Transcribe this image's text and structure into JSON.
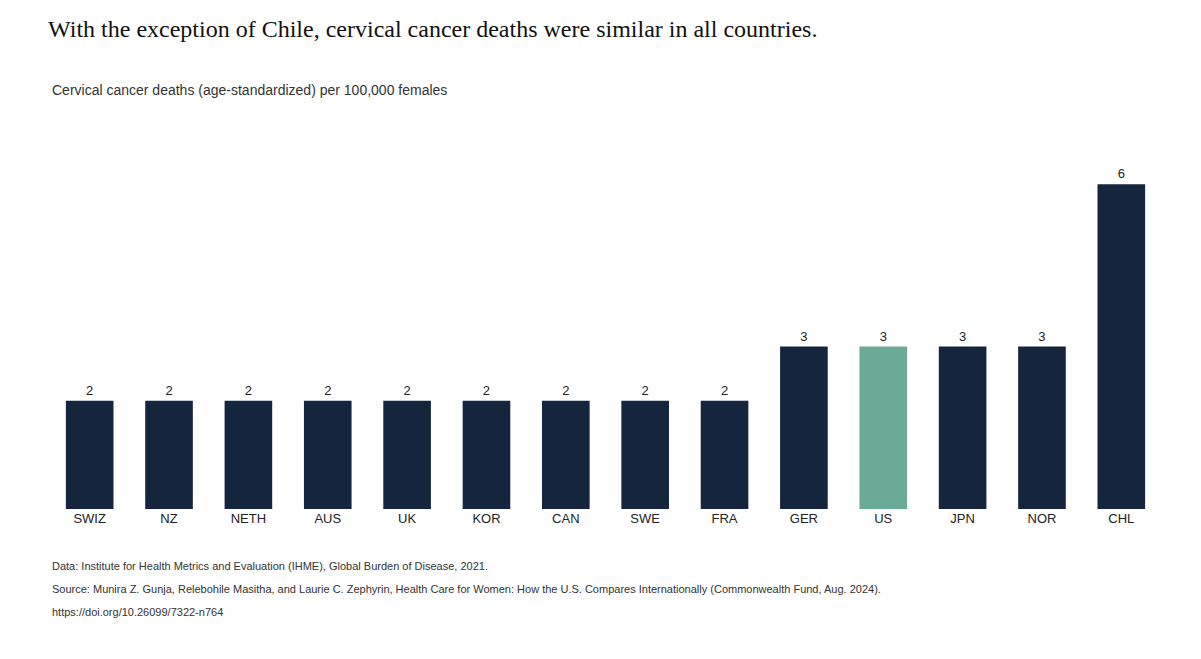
{
  "chart_data": {
    "type": "bar",
    "title": "With the exception of Chile, cervical cancer deaths were similar in all countries.",
    "subtitle": "Cervical cancer deaths (age-standardized) per 100,000 females",
    "categories": [
      "SWIZ",
      "NZ",
      "NETH",
      "AUS",
      "UK",
      "KOR",
      "CAN",
      "SWE",
      "FRA",
      "GER",
      "US",
      "JPN",
      "NOR",
      "CHL"
    ],
    "values": [
      2,
      2,
      2,
      2,
      2,
      2,
      2,
      2,
      2,
      3,
      3,
      3,
      3,
      6
    ],
    "colors": [
      "#14253d",
      "#14253d",
      "#14253d",
      "#14253d",
      "#14253d",
      "#14253d",
      "#14253d",
      "#14253d",
      "#14253d",
      "#14253d",
      "#6aaa96",
      "#14253d",
      "#14253d",
      "#14253d"
    ],
    "ylim": [
      0,
      7
    ],
    "data_labels": true,
    "tick_labels": "x",
    "grid": false,
    "annotations": [
      "Data: Institute for Health Metrics and Evaluation (IHME), Global Burden of Disease, 2021.",
      "Source: Munira Z. Gunja, Relebohile Masitha, and Laurie C. Zephyrin, Health Care for Women: How the U.S. Compares Internationally (Commonwealth Fund, Aug. 2024).",
      "https://doi.org/10.26099/7322-n764"
    ]
  }
}
